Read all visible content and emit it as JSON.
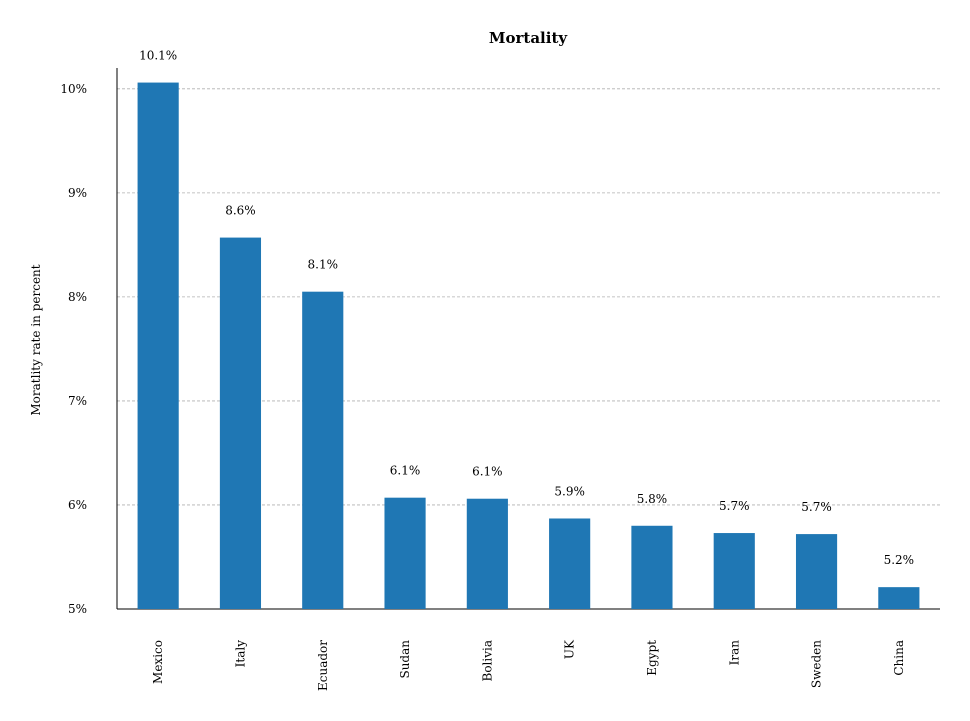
{
  "chart_data": {
    "type": "bar",
    "title": "Mortality",
    "y_label": "Moratlity rate in percent",
    "categories": [
      "Mexico",
      "Italy",
      "Ecuador",
      "Sudan",
      "Bolivia",
      "UK",
      "Egypt",
      "Iran",
      "Sweden",
      "China"
    ],
    "values": [
      10.06,
      8.57,
      8.05,
      6.07,
      6.06,
      5.87,
      5.8,
      5.73,
      5.72,
      5.21
    ],
    "value_labels": [
      "10.1%",
      "8.6%",
      "8.1%",
      "6.1%",
      "6.1%",
      "5.9%",
      "5.8%",
      "5.7%",
      "5.7%",
      "5.2%"
    ],
    "color": "#1f77b4",
    "ylim": [
      5,
      10.2
    ],
    "yticks": [
      {
        "value": 5,
        "label": "5%"
      },
      {
        "value": 6,
        "label": "6%"
      },
      {
        "value": 7,
        "label": "7%"
      },
      {
        "value": 8,
        "label": "8%"
      },
      {
        "value": 9,
        "label": "9%"
      },
      {
        "value": 10,
        "label": "10%"
      }
    ],
    "grid": true
  }
}
